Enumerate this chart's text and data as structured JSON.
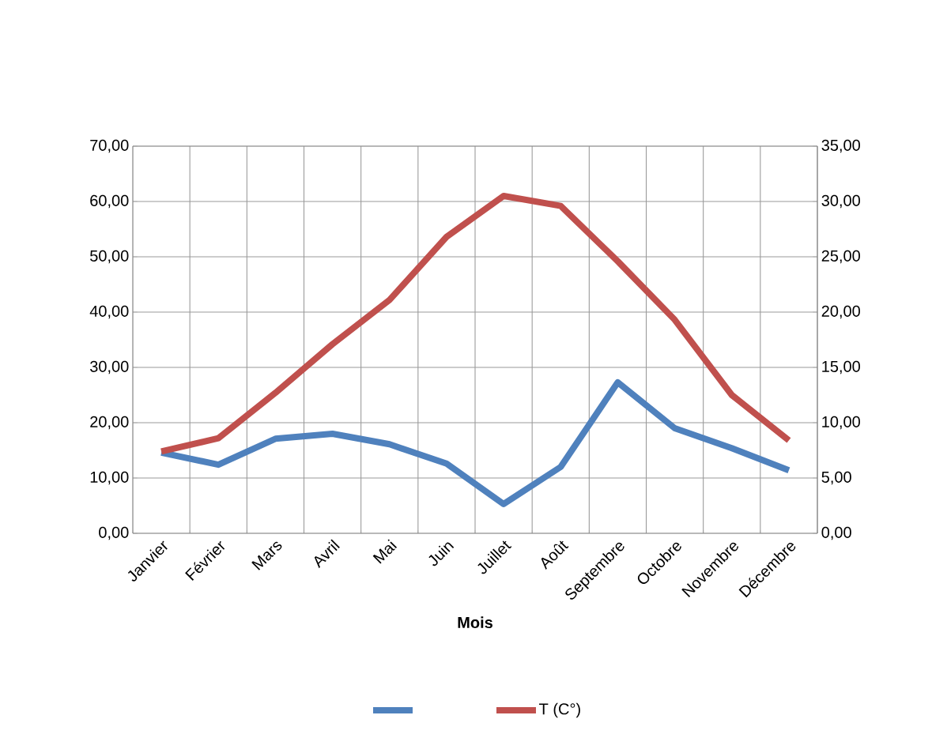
{
  "chart_data": {
    "type": "line",
    "xlabel": "Mois",
    "categories": [
      "Janvier",
      "Février",
      "Mars",
      "Avril",
      "Mai",
      "Juin",
      "Juillet",
      "Août",
      "Septembre",
      "Octobre",
      "Novembre",
      "Décembre"
    ],
    "series": [
      {
        "color": "#4f81bd",
        "values": [
          14.6,
          12.4,
          17.1,
          18.0,
          16.1,
          12.6,
          5.3,
          12.0,
          27.3,
          19.0,
          15.4,
          11.4
        ]
      },
      {
        "name": "T (C°)",
        "color": "#c0504d",
        "axis": "y2",
        "values": [
          7.4,
          8.6,
          12.7,
          17.1,
          21.1,
          26.8,
          30.5,
          29.6,
          24.6,
          19.3,
          12.5,
          8.4
        ]
      }
    ],
    "ylim": [
      0,
      70
    ],
    "yticks": [
      {
        "value": 0,
        "label": "0,00"
      },
      {
        "value": 10,
        "label": "10,00"
      },
      {
        "value": 20,
        "label": "20,00"
      },
      {
        "value": 30,
        "label": "30,00"
      },
      {
        "value": 40,
        "label": "40,00"
      },
      {
        "value": 50,
        "label": "50,00"
      },
      {
        "value": 60,
        "label": "60,00"
      },
      {
        "value": 70,
        "label": "70,00"
      }
    ],
    "y2lim": [
      0,
      35
    ],
    "y2ticks": [
      {
        "value": 0,
        "label": "0,00"
      },
      {
        "value": 5,
        "label": "5,00"
      },
      {
        "value": 10,
        "label": "10,00"
      },
      {
        "value": 15,
        "label": "15,00"
      },
      {
        "value": 20,
        "label": "20,00"
      },
      {
        "value": 25,
        "label": "25,00"
      },
      {
        "value": 30,
        "label": "30,00"
      },
      {
        "value": 35,
        "label": "35,00"
      }
    ],
    "grid": true,
    "legend": "bottom",
    "marker": "none",
    "line_style": "solid"
  }
}
